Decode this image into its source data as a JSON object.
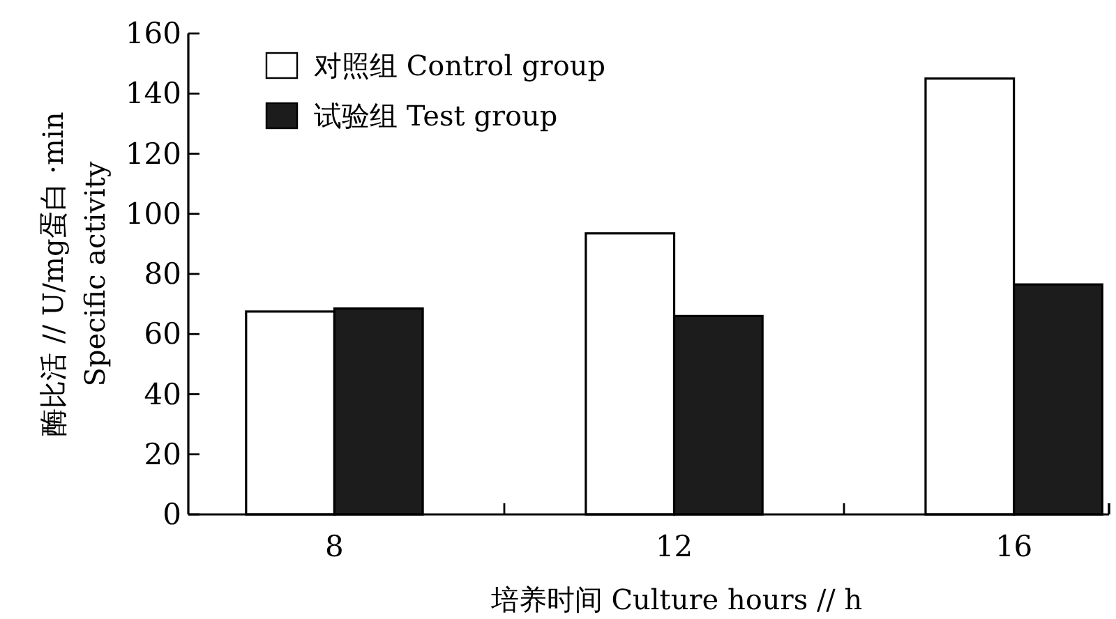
{
  "chart_data": {
    "type": "bar",
    "xlabel": "培养时间 Culture hours // h",
    "ylabel": "酶比活 // U/mg蛋白 ·min\nSpecific activity",
    "categories": [
      "8",
      "12",
      "16"
    ],
    "series": [
      {
        "name": "对照组 Control group",
        "color": "#ffffff",
        "values": [
          67.5,
          93.5,
          145
        ]
      },
      {
        "name": "试验组 Test group",
        "color": "#1c1c1c",
        "values": [
          68.5,
          66,
          76.5
        ]
      }
    ],
    "ylim": [
      0,
      160
    ],
    "yticks": [
      0,
      20,
      40,
      60,
      80,
      100,
      120,
      140,
      160
    ],
    "legend": "top left"
  }
}
